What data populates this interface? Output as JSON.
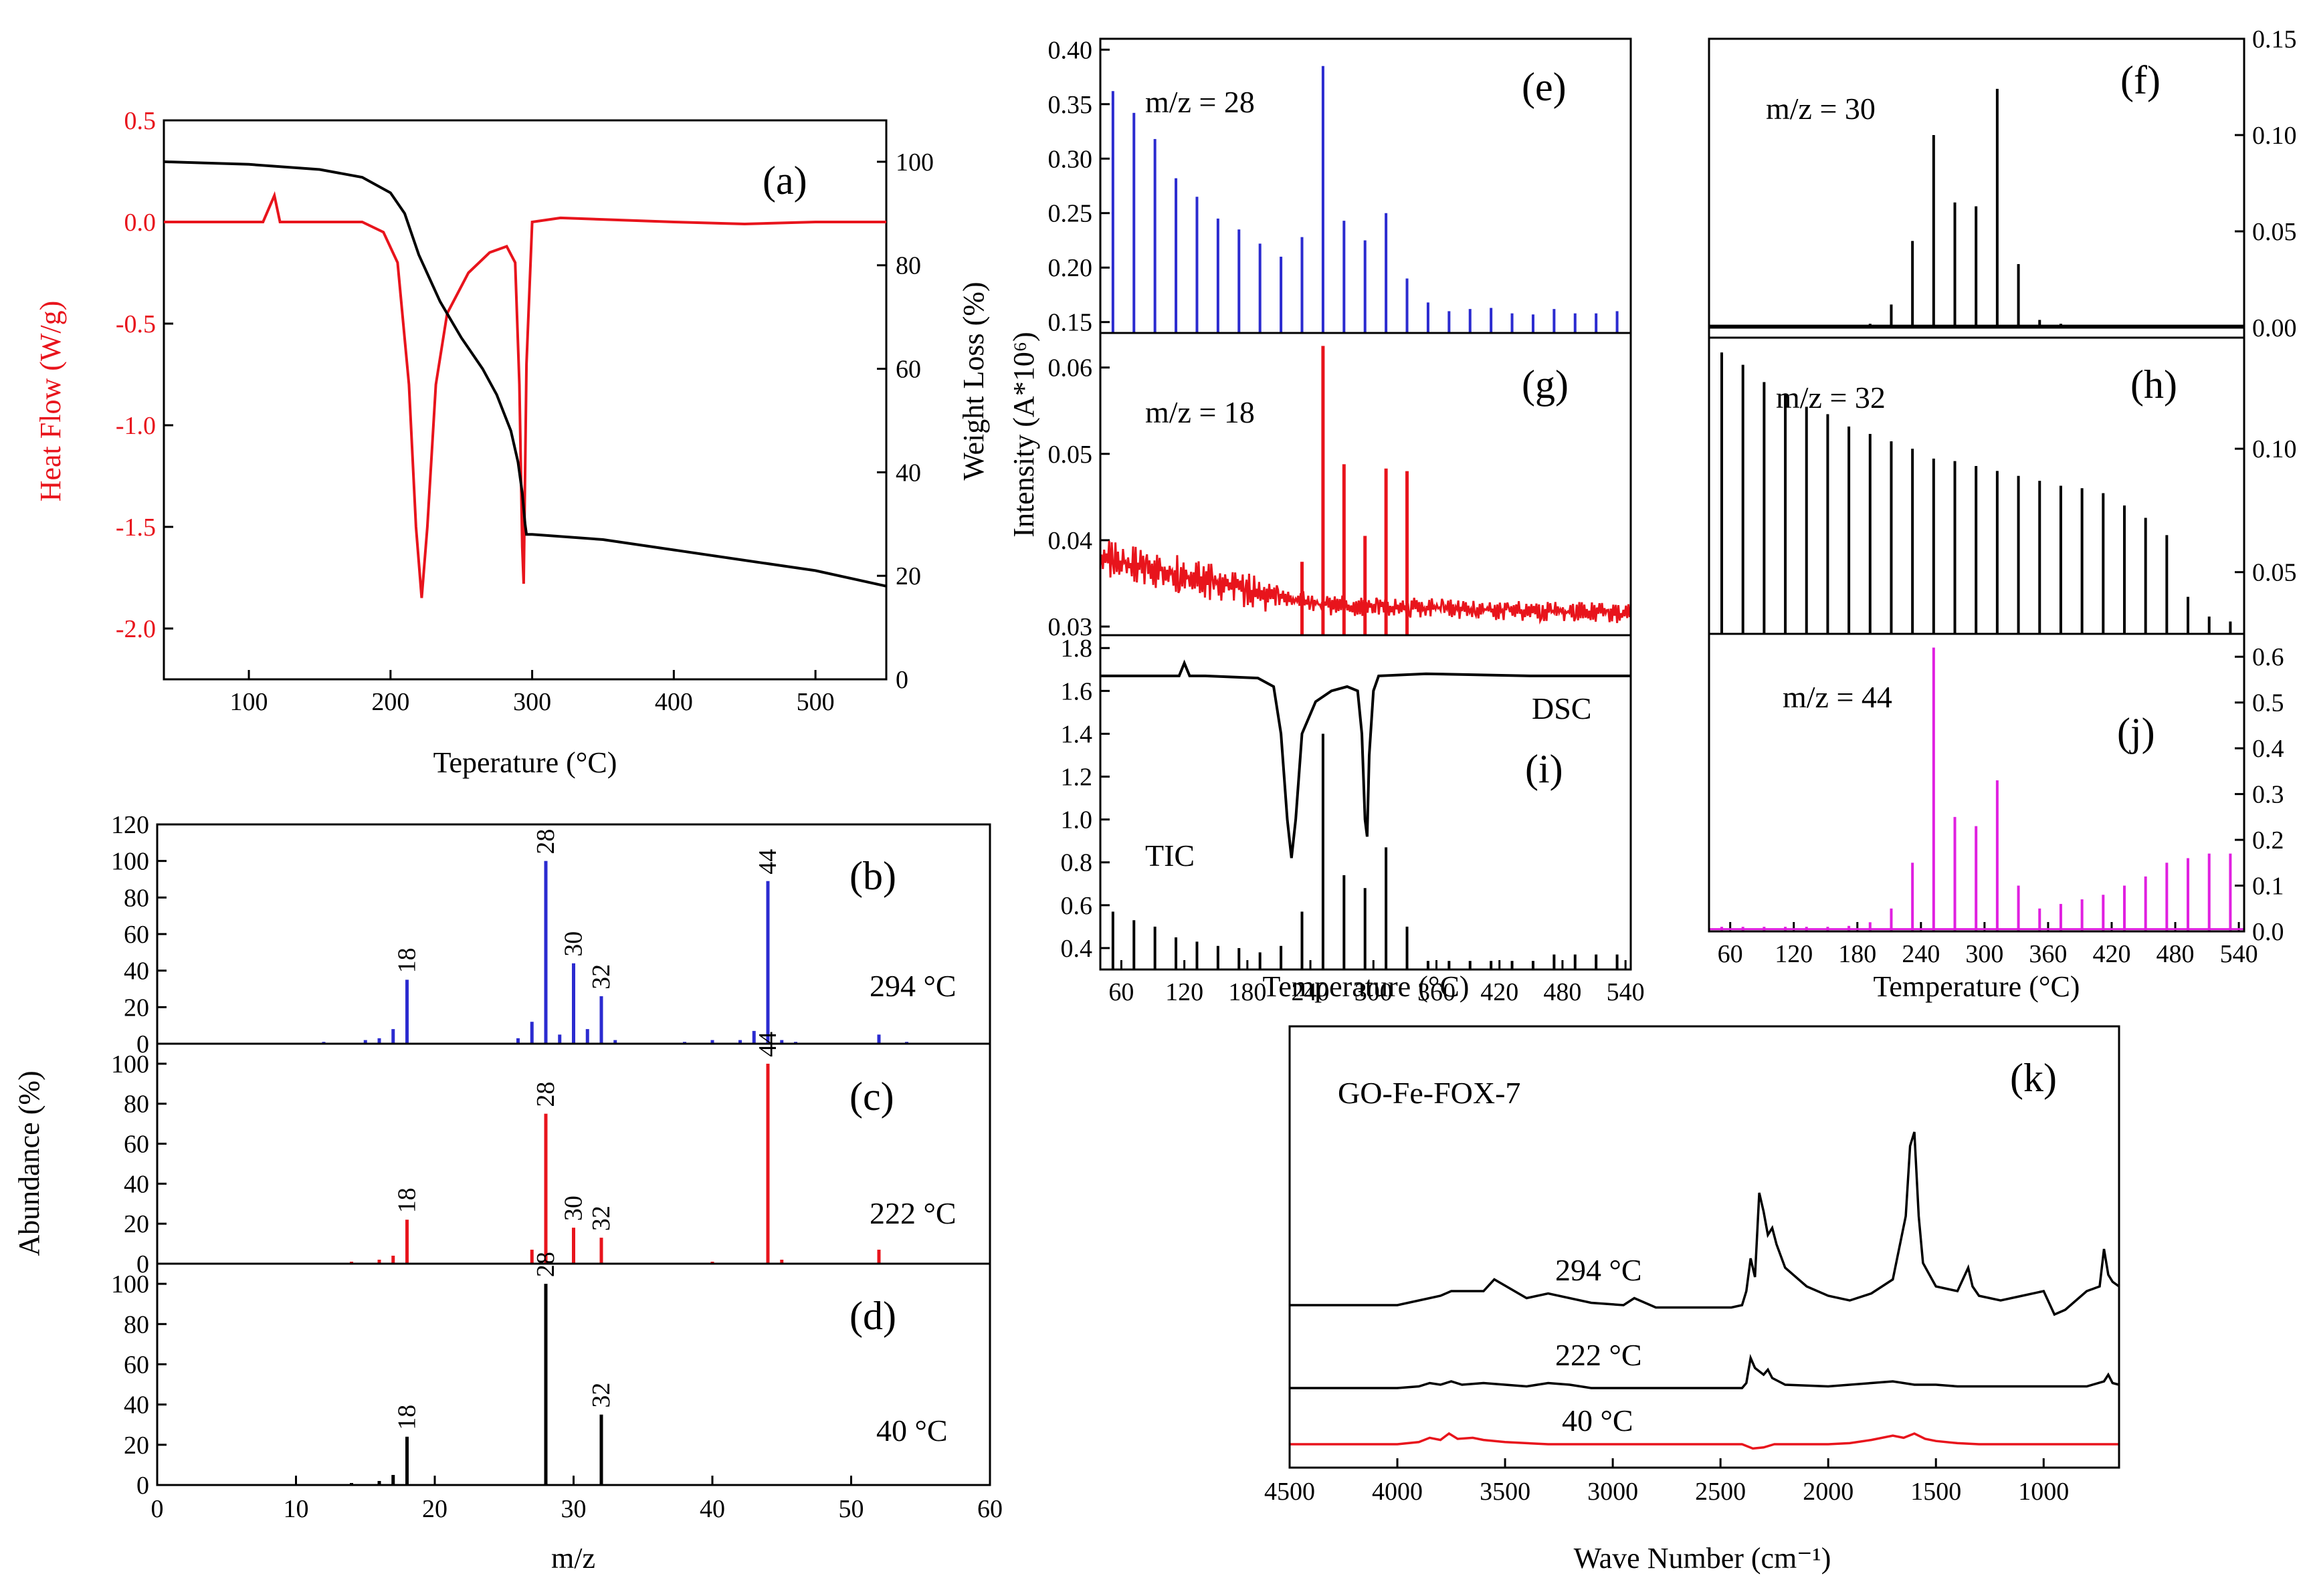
{
  "colors": {
    "red": "#e8141c",
    "blue": "#2b2bd0",
    "black": "#000000",
    "magenta": "#e020e0"
  },
  "chart_data": [
    {
      "id": "a",
      "type": "line",
      "label": "(a)",
      "xlabel": "Teperature (°C)",
      "ylabel": "Heat Flow (W/g)",
      "y2label": "Weight Loss (%)",
      "xlim": [
        40,
        550
      ],
      "ylim": [
        -2.25,
        0.5
      ],
      "y2lim": [
        0,
        108
      ],
      "xticks": [
        100,
        200,
        300,
        400,
        500
      ],
      "yticks": [
        0.5,
        0.0,
        -0.5,
        -1.0,
        -1.5,
        -2.0
      ],
      "ytick_labels": [
        "0.5",
        "0.0",
        "-0.5",
        "-1.0",
        "-1.5",
        "-2.0"
      ],
      "y2ticks": [
        0,
        20,
        40,
        60,
        80,
        100
      ],
      "series": [
        {
          "name": "Heat Flow",
          "axis": "left",
          "color": "#e8141c",
          "x": [
            40,
            100,
            110,
            118,
            122,
            130,
            180,
            195,
            205,
            213,
            218,
            222,
            226,
            232,
            240,
            255,
            270,
            282,
            288,
            291,
            293,
            294,
            296,
            300,
            320,
            400,
            450,
            500,
            550
          ],
          "y": [
            0.0,
            0.0,
            0.0,
            0.13,
            0.0,
            0.0,
            0.0,
            -0.05,
            -0.2,
            -0.8,
            -1.5,
            -1.85,
            -1.5,
            -0.8,
            -0.45,
            -0.25,
            -0.15,
            -0.12,
            -0.2,
            -0.8,
            -1.6,
            -1.78,
            -0.7,
            0.0,
            0.02,
            0.0,
            -0.01,
            0.0,
            0.0
          ]
        },
        {
          "name": "Weight Loss",
          "axis": "right",
          "color": "#000000",
          "x": [
            40,
            100,
            150,
            180,
            200,
            210,
            220,
            235,
            250,
            265,
            275,
            285,
            290,
            293,
            295,
            296,
            300,
            350,
            400,
            450,
            500,
            550
          ],
          "y": [
            100,
            99.5,
            98.5,
            97,
            94,
            90,
            82,
            73,
            66,
            60,
            55,
            48,
            42,
            36,
            30,
            28,
            28,
            27,
            25,
            23,
            21,
            18
          ]
        }
      ]
    },
    {
      "id": "b",
      "type": "bar",
      "label": "(b)",
      "note": "294 °C",
      "color": "#2b2bd0",
      "xlim": [
        0,
        60
      ],
      "ylim": [
        0,
        120
      ],
      "yticks": [
        0,
        20,
        40,
        60,
        80,
        100,
        120
      ],
      "x": [
        12,
        15,
        16,
        17,
        18,
        26,
        27,
        28,
        29,
        30,
        31,
        32,
        33,
        38,
        40,
        42,
        43,
        44,
        45,
        46,
        52,
        54
      ],
      "y": [
        1,
        2,
        3,
        8,
        35,
        3,
        12,
        100,
        5,
        44,
        8,
        26,
        2,
        1,
        2,
        2,
        7,
        89,
        2,
        1,
        5,
        1
      ],
      "peak_labels": [
        {
          "x": 18,
          "text": "18"
        },
        {
          "x": 28,
          "text": "28"
        },
        {
          "x": 30,
          "text": "30"
        },
        {
          "x": 32,
          "text": "32"
        },
        {
          "x": 44,
          "text": "44"
        }
      ]
    },
    {
      "id": "c",
      "type": "bar",
      "label": "(c)",
      "note": "222 °C",
      "color": "#e8141c",
      "xlim": [
        0,
        60
      ],
      "ylim": [
        0,
        110
      ],
      "yticks": [
        0,
        20,
        40,
        60,
        80,
        100
      ],
      "x": [
        14,
        16,
        17,
        18,
        27,
        28,
        30,
        32,
        40,
        44,
        45,
        52
      ],
      "y": [
        1,
        2,
        4,
        22,
        7,
        75,
        18,
        13,
        1,
        100,
        2,
        7
      ],
      "peak_labels": [
        {
          "x": 18,
          "text": "18"
        },
        {
          "x": 28,
          "text": "28"
        },
        {
          "x": 30,
          "text": "30"
        },
        {
          "x": 32,
          "text": "32"
        },
        {
          "x": 44,
          "text": "44"
        }
      ]
    },
    {
      "id": "d",
      "type": "bar",
      "label": "(d)",
      "note": "40 °C",
      "color": "#000000",
      "xlabel": "m/z",
      "xlim": [
        0,
        60
      ],
      "ylim": [
        0,
        110
      ],
      "yticks": [
        0,
        20,
        40,
        60,
        80,
        100
      ],
      "xticks": [
        0,
        10,
        20,
        30,
        40,
        50,
        60
      ],
      "x": [
        14,
        16,
        17,
        18,
        28,
        32
      ],
      "y": [
        1,
        2,
        5,
        24,
        100,
        35
      ],
      "peak_labels": [
        {
          "x": 18,
          "text": "18"
        },
        {
          "x": 28,
          "text": "28"
        },
        {
          "x": 32,
          "text": "32"
        }
      ]
    },
    {
      "id": "e",
      "type": "bar",
      "label": "(e)",
      "note": "m/z = 28",
      "color": "#2b2bd0",
      "xlim": [
        40,
        545
      ],
      "ylim": [
        0.14,
        0.41
      ],
      "yticks": [
        0.15,
        0.2,
        0.25,
        0.3,
        0.35,
        0.4
      ],
      "ytick_labels": [
        "0.15",
        "0.20",
        "0.25",
        "0.30",
        "0.35",
        "0.40"
      ],
      "x": [
        52,
        72,
        92,
        112,
        132,
        152,
        172,
        192,
        212,
        232,
        252,
        272,
        292,
        312,
        332,
        352,
        372,
        392,
        412,
        432,
        452,
        472,
        492,
        512,
        532
      ],
      "y": [
        0.362,
        0.342,
        0.318,
        0.282,
        0.265,
        0.245,
        0.235,
        0.222,
        0.21,
        0.228,
        0.385,
        0.243,
        0.225,
        0.25,
        0.19,
        0.168,
        0.16,
        0.162,
        0.163,
        0.158,
        0.157,
        0.162,
        0.158,
        0.158,
        0.16
      ]
    },
    {
      "id": "g",
      "type": "bar",
      "label": "(g)",
      "note": "m/z = 18",
      "color": "#e8141c",
      "xlim": [
        40,
        545
      ],
      "ylim": [
        0.029,
        0.064
      ],
      "yticks": [
        0.03,
        0.04,
        0.05,
        0.06
      ],
      "ytick_labels": [
        "0.03",
        "0.04",
        "0.05",
        "0.06"
      ],
      "x": [
        232,
        252,
        272,
        292,
        312,
        332
      ],
      "y": [
        0.0375,
        0.0625,
        0.0488,
        0.0405,
        0.0483,
        0.048
      ],
      "baseline": {
        "start": 0.038,
        "mid": 0.0325,
        "end": 0.0315
      }
    },
    {
      "id": "i",
      "type": "bar",
      "label": "(i)",
      "note": "DSC",
      "note2": "TIC",
      "color": "#000000",
      "xlabel": "Temperature (°C)",
      "xlim": [
        40,
        545
      ],
      "ylim": [
        0.3,
        1.86
      ],
      "yticks": [
        0.4,
        0.6,
        0.8,
        1.0,
        1.2,
        1.4,
        1.6,
        1.8
      ],
      "ytick_labels": [
        "0.4",
        "0.6",
        "0.8",
        "1.0",
        "1.2",
        "1.4",
        "1.6",
        "1.8"
      ],
      "xticks": [
        60,
        120,
        180,
        240,
        300,
        360,
        420,
        480,
        540
      ],
      "x": [
        52,
        72,
        92,
        112,
        132,
        152,
        172,
        192,
        212,
        232,
        252,
        272,
        292,
        312,
        332,
        352,
        372,
        392,
        412,
        432,
        452,
        472,
        492,
        512,
        532
      ],
      "y": [
        0.57,
        0.53,
        0.5,
        0.45,
        0.43,
        0.41,
        0.4,
        0.38,
        0.41,
        0.57,
        1.4,
        0.74,
        0.68,
        0.87,
        0.5,
        0.34,
        0.34,
        0.34,
        0.34,
        0.34,
        0.34,
        0.37,
        0.37,
        0.37,
        0.37
      ],
      "dsc": {
        "x": [
          40,
          100,
          115,
          120,
          125,
          140,
          190,
          205,
          212,
          218,
          222,
          226,
          232,
          245,
          260,
          275,
          285,
          289,
          292,
          294,
          296,
          300,
          305,
          350,
          450,
          545
        ],
        "y": [
          1.67,
          1.67,
          1.67,
          1.73,
          1.67,
          1.67,
          1.66,
          1.62,
          1.4,
          1.0,
          0.82,
          1.0,
          1.4,
          1.55,
          1.6,
          1.62,
          1.6,
          1.4,
          1.0,
          0.92,
          1.3,
          1.6,
          1.67,
          1.68,
          1.67,
          1.67
        ]
      }
    },
    {
      "id": "f",
      "type": "bar",
      "label": "(f)",
      "note": "m/z = 30",
      "color": "#000000",
      "xlim": [
        40,
        545
      ],
      "ylim": [
        0,
        0.15
      ],
      "yticks": [
        0.0,
        0.05,
        0.1,
        0.15
      ],
      "ytick_labels": [
        "0.00",
        "0.05",
        "0.10",
        "0.15"
      ],
      "x": [
        192,
        212,
        232,
        252,
        272,
        292,
        312,
        332,
        352,
        372,
        392,
        412,
        432,
        452,
        472,
        492,
        512,
        532
      ],
      "y": [
        0.002,
        0.012,
        0.045,
        0.1,
        0.065,
        0.063,
        0.124,
        0.033,
        0.004,
        0.002,
        0.001,
        0.001,
        0.001,
        0.001,
        0.001,
        0.001,
        0.001,
        0.001
      ]
    },
    {
      "id": "h",
      "type": "bar",
      "label": "(h)",
      "note": "m/z = 32",
      "color": "#000000",
      "xlim": [
        40,
        545
      ],
      "ylim": [
        0.025,
        0.145
      ],
      "yticks": [
        0.05,
        0.1
      ],
      "ytick_labels": [
        "0.05",
        "0.10"
      ],
      "x": [
        52,
        72,
        92,
        112,
        132,
        152,
        172,
        192,
        212,
        232,
        252,
        272,
        292,
        312,
        332,
        352,
        372,
        392,
        412,
        432,
        452,
        472,
        492,
        512,
        532
      ],
      "y": [
        0.139,
        0.134,
        0.127,
        0.122,
        0.117,
        0.114,
        0.109,
        0.106,
        0.103,
        0.1,
        0.096,
        0.095,
        0.093,
        0.091,
        0.089,
        0.087,
        0.085,
        0.084,
        0.082,
        0.077,
        0.072,
        0.065,
        0.04,
        0.032,
        0.03
      ]
    },
    {
      "id": "j",
      "type": "bar",
      "label": "(j)",
      "note": "m/z = 44",
      "color": "#e020e0",
      "xlabel": "Temperature (°C)",
      "xlim": [
        40,
        545
      ],
      "ylim": [
        0,
        0.65
      ],
      "yticks": [
        0.0,
        0.1,
        0.2,
        0.3,
        0.4,
        0.5,
        0.6
      ],
      "ytick_labels": [
        "0.0",
        "0.1",
        "0.2",
        "0.3",
        "0.4",
        "0.5",
        "0.6"
      ],
      "xticks": [
        60,
        120,
        180,
        240,
        300,
        360,
        420,
        480,
        540
      ],
      "x": [
        52,
        72,
        92,
        112,
        132,
        152,
        172,
        192,
        212,
        232,
        252,
        272,
        292,
        312,
        332,
        352,
        372,
        392,
        412,
        432,
        452,
        472,
        492,
        512,
        532
      ],
      "y": [
        0.01,
        0.01,
        0.01,
        0.01,
        0.01,
        0.01,
        0.012,
        0.02,
        0.05,
        0.15,
        0.62,
        0.25,
        0.23,
        0.33,
        0.1,
        0.05,
        0.06,
        0.07,
        0.08,
        0.1,
        0.12,
        0.15,
        0.16,
        0.17,
        0.17
      ]
    },
    {
      "id": "k",
      "type": "line",
      "label": "(k)",
      "sample": "GO-Fe-FOX-7",
      "xlabel": "Wave Number (cm⁻¹)",
      "xlim": [
        4500,
        650
      ],
      "xticks": [
        4500,
        4000,
        3500,
        3000,
        2500,
        2000,
        1500,
        1000
      ],
      "ylim": [
        0,
        100
      ],
      "series": [
        {
          "name": "294 °C",
          "color": "#000000",
          "x": [
            4500,
            4000,
            3900,
            3800,
            3750,
            3600,
            3550,
            3400,
            3300,
            3100,
            2950,
            2900,
            2800,
            2450,
            2400,
            2380,
            2360,
            2340,
            2320,
            2300,
            2280,
            2260,
            2240,
            2200,
            2100,
            2000,
            1900,
            1800,
            1700,
            1640,
            1620,
            1600,
            1580,
            1560,
            1500,
            1450,
            1400,
            1350,
            1330,
            1300,
            1200,
            1100,
            1000,
            950,
            900,
            800,
            740,
            720,
            700,
            680,
            650
          ],
          "y": [
            22,
            22,
            24,
            26,
            28,
            28,
            33,
            25,
            27,
            23,
            22,
            25,
            21,
            21,
            22,
            28,
            42,
            34,
            70,
            62,
            52,
            55,
            48,
            38,
            30,
            26,
            24,
            27,
            33,
            60,
            90,
            96,
            60,
            40,
            30,
            29,
            28,
            38,
            30,
            26,
            24,
            26,
            28,
            18,
            20,
            28,
            30,
            46,
            35,
            32,
            30
          ]
        },
        {
          "name": "222 °C",
          "color": "#000000",
          "x": [
            4500,
            4000,
            3900,
            3850,
            3800,
            3750,
            3700,
            3600,
            3500,
            3400,
            3300,
            3200,
            3100,
            2500,
            2400,
            2380,
            2360,
            2340,
            2300,
            2280,
            2260,
            2200,
            2000,
            1800,
            1700,
            1600,
            1500,
            1400,
            1200,
            1000,
            800,
            720,
            700,
            680,
            650
          ],
          "y": [
            0,
            0,
            1,
            3,
            2,
            4,
            2,
            3,
            2,
            1,
            3,
            2,
            0,
            0,
            0,
            3,
            18,
            12,
            8,
            11,
            6,
            2,
            1,
            3,
            4,
            2,
            2,
            1,
            1,
            1,
            1,
            4,
            8,
            3,
            2
          ]
        },
        {
          "name": "40 °C",
          "color": "#e8141c",
          "x": [
            4500,
            4000,
            3900,
            3850,
            3800,
            3760,
            3720,
            3650,
            3600,
            3500,
            3400,
            3300,
            3000,
            2500,
            2400,
            2350,
            2300,
            2250,
            2000,
            1900,
            1800,
            1700,
            1650,
            1600,
            1550,
            1500,
            1400,
            1300,
            1000,
            700,
            650
          ],
          "y": [
            0,
            0,
            2,
            6,
            4,
            10,
            5,
            6,
            4,
            2,
            1,
            0,
            0,
            0,
            0,
            -4,
            -3,
            0,
            0,
            1,
            4,
            8,
            6,
            10,
            5,
            3,
            1,
            0,
            0,
            0,
            0
          ]
        }
      ]
    }
  ],
  "axis_titles": {
    "a_left": "Heat Flow (W/g)",
    "a_right": "Weight Loss (%)",
    "a_bottom": "Teperature (°C)",
    "bcd_left": "Abundance (%)",
    "bcd_bottom": "m/z",
    "egi_left": "Intensity (A*10⁶)",
    "egi_bottom": "Temperature (°C)",
    "fhj_bottom": "Temperature (°C)",
    "k_bottom": "Wave Number (cm⁻¹)"
  },
  "labels": {
    "a": "(a)",
    "b": "(b)",
    "c": "(c)",
    "d": "(d)",
    "e": "(e)",
    "f": "(f)",
    "g": "(g)",
    "h": "(h)",
    "i": "(i)",
    "j": "(j)",
    "k": "(k)",
    "note_b": "294 °C",
    "note_c": "222 °C",
    "note_d": "40 °C",
    "note_e": "m/z = 28",
    "note_f": "m/z = 30",
    "note_g": "m/z = 18",
    "note_h": "m/z = 32",
    "note_j": "m/z = 44",
    "dsc": "DSC",
    "tic": "TIC",
    "sample": "GO-Fe-FOX-7",
    "k_294": "294 °C",
    "k_222": "222 °C",
    "k_40": "40 °C"
  }
}
